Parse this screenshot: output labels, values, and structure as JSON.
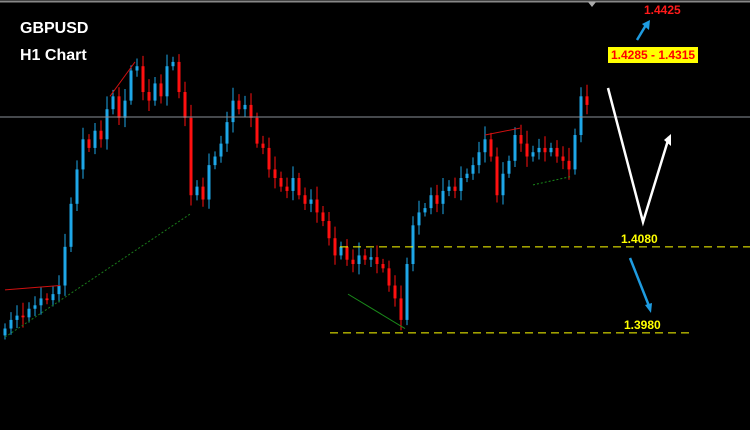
{
  "chart_data": {
    "type": "candlestick",
    "title": "GBPUSD",
    "subtitle": "H1 Chart",
    "ylim": [
      1.3867,
      1.4367
    ],
    "grid": false,
    "closes": [
      1.3985,
      1.3995,
      1.4,
      1.3998,
      1.4008,
      1.4012,
      1.402,
      1.4018,
      1.4025,
      1.4035,
      1.408,
      1.413,
      1.417,
      1.4205,
      1.4195,
      1.4215,
      1.4205,
      1.424,
      1.4255,
      1.423,
      1.425,
      1.4285,
      1.429,
      1.426,
      1.425,
      1.427,
      1.4255,
      1.429,
      1.4295,
      1.426,
      1.423,
      1.414,
      1.415,
      1.4135,
      1.4175,
      1.4185,
      1.42,
      1.4225,
      1.425,
      1.424,
      1.4245,
      1.423,
      1.42,
      1.4195,
      1.417,
      1.416,
      1.415,
      1.4145,
      1.416,
      1.414,
      1.413,
      1.4135,
      1.412,
      1.411,
      1.409,
      1.407,
      1.408,
      1.4065,
      1.406,
      1.407,
      1.4065,
      1.4068,
      1.406,
      1.4055,
      1.4035,
      1.402,
      1.3995,
      1.406,
      1.4105,
      1.412,
      1.4125,
      1.414,
      1.413,
      1.4145,
      1.415,
      1.4145,
      1.416,
      1.4165,
      1.4175,
      1.419,
      1.4205,
      1.4185,
      1.414,
      1.4165,
      1.418,
      1.421,
      1.42,
      1.4185,
      1.419,
      1.4195,
      1.419,
      1.4195,
      1.4185,
      1.418,
      1.417,
      1.421,
      1.4255,
      1.4245
    ],
    "current_price_line": 1.4231,
    "levels": [
      {
        "label": "1.4080",
        "value": 1.408
      },
      {
        "label": "1.3980",
        "value": 1.398
      }
    ],
    "target_zone": "1.4285 - 1.4315",
    "upper_target": "1.4425",
    "colors": {
      "bull": "#1ea7e8",
      "bear": "#ff1010",
      "level": "#ffff00",
      "background": "#000000"
    }
  }
}
